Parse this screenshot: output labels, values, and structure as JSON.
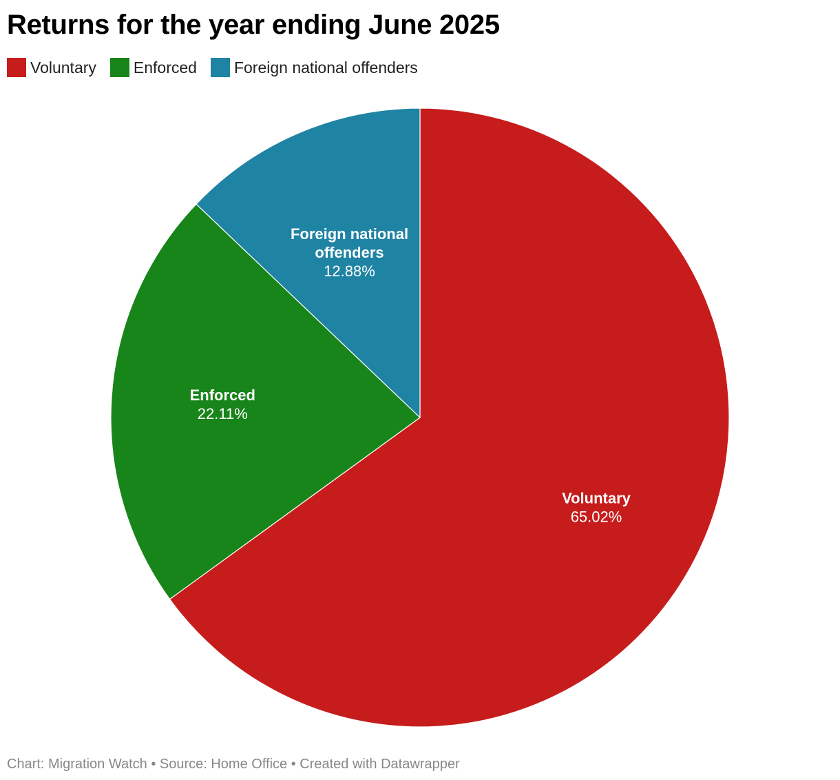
{
  "header": {
    "title": "Returns for the year ending June 2025"
  },
  "chart_data": {
    "type": "pie",
    "title": "Returns for the year ending June 2025",
    "slices": [
      {
        "name": "Voluntary",
        "value": 65.02,
        "value_label": "65.02%",
        "color": "#c71c1c",
        "label_lines": [
          "Voluntary"
        ]
      },
      {
        "name": "Enforced",
        "value": 22.11,
        "value_label": "22.11%",
        "color": "#178519",
        "label_lines": [
          "Enforced"
        ]
      },
      {
        "name": "Foreign national offenders",
        "value": 12.88,
        "value_label": "12.88%",
        "color": "#1f83a3",
        "label_lines": [
          "Foreign national",
          "offenders"
        ]
      }
    ],
    "start_angle": "12 o'clock",
    "direction": "clockwise",
    "legend_position": "top-left"
  },
  "footer": {
    "text": "Chart: Migration Watch • Source: Home Office • Created with Datawrapper"
  }
}
